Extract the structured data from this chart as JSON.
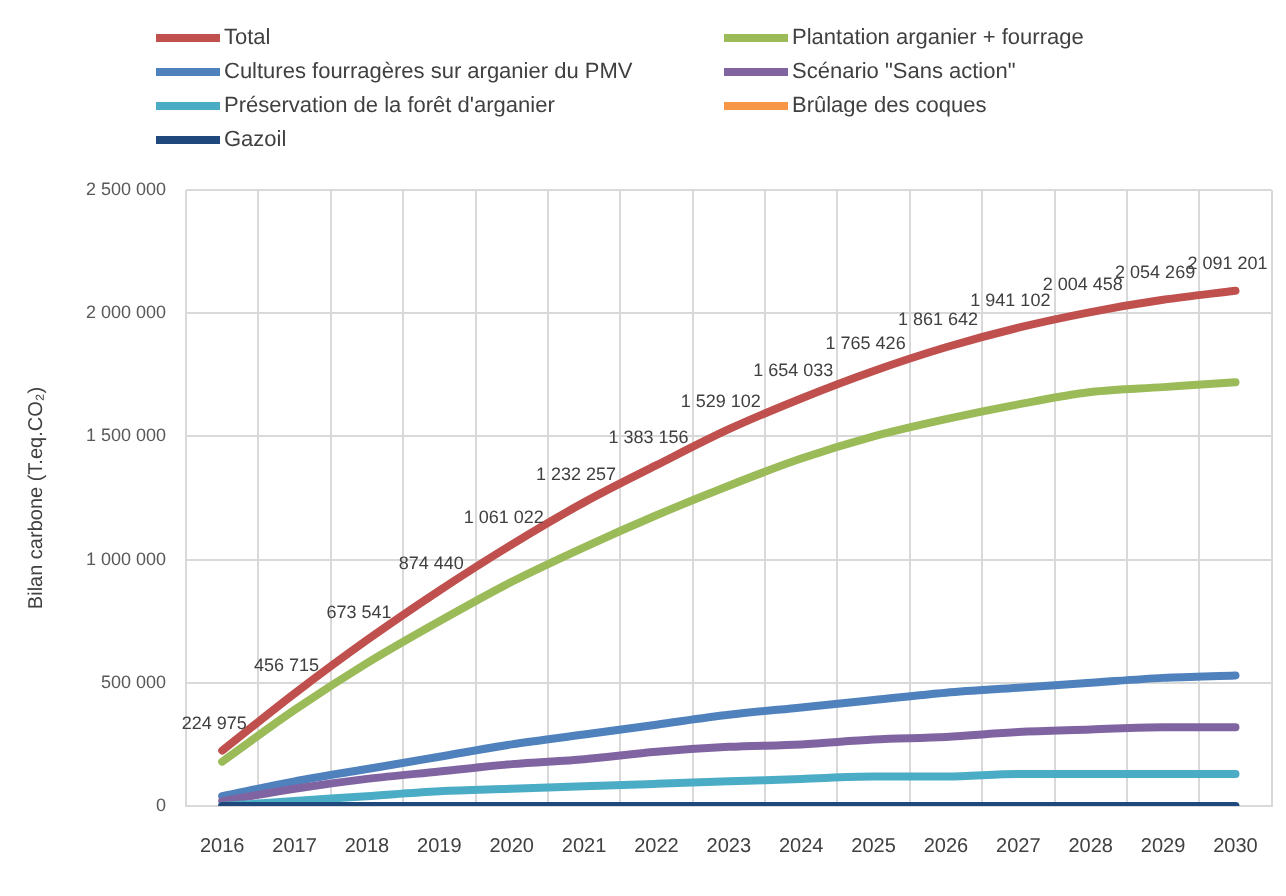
{
  "chart_data": {
    "type": "line",
    "categories": [
      "2016",
      "2017",
      "2018",
      "2019",
      "2020",
      "2021",
      "2022",
      "2023",
      "2024",
      "2025",
      "2026",
      "2027",
      "2028",
      "2029",
      "2030"
    ],
    "ylabel": "Bilan carbone (T.eq.CO₂)",
    "ylim": [
      0,
      2500000
    ],
    "yticks": [
      0,
      {
        "value": 500000,
        "label": "500 000"
      },
      {
        "value": 1000000,
        "label": "1 000 000"
      },
      {
        "value": 1500000,
        "label": "1 500 000"
      },
      {
        "value": 2000000,
        "label": "2 000 000"
      },
      {
        "value": 2500000,
        "label": "2 500 000"
      }
    ],
    "grid": true,
    "legend": "top",
    "marker": "none",
    "line_style": "solid",
    "series": [
      {
        "name": "Total",
        "color": "#c0504d",
        "values": [
          224975,
          456715,
          673541,
          874440,
          1061022,
          1232257,
          1383156,
          1529102,
          1654033,
          1765426,
          1861642,
          1941102,
          2004458,
          2054269,
          2091201
        ],
        "value_labels": [
          "224 975",
          "456 715",
          "673 541",
          "874 440",
          "1 061 022",
          "1 232 257",
          "1 383 156",
          "1 529 102",
          "1 654 033",
          "1 765 426",
          "1 861 642",
          "1 941 102",
          "2 004 458",
          "2 054 269",
          "2 091 201"
        ]
      },
      {
        "name": "Plantation arganier + fourrage",
        "color": "#9bbb59",
        "values": [
          180000,
          390000,
          580000,
          750000,
          910000,
          1050000,
          1180000,
          1300000,
          1410000,
          1500000,
          1570000,
          1630000,
          1680000,
          1700000,
          1720000
        ]
      },
      {
        "name": "Cultures fourragères sur arganier du PMV",
        "color": "#4f81bd",
        "values": [
          40000,
          100000,
          150000,
          200000,
          250000,
          290000,
          330000,
          370000,
          400000,
          430000,
          460000,
          480000,
          500000,
          520000,
          530000
        ]
      },
      {
        "name": "Scénario \"Sans action\"",
        "color": "#8064a2",
        "values": [
          20000,
          70000,
          110000,
          140000,
          170000,
          190000,
          220000,
          240000,
          250000,
          270000,
          280000,
          300000,
          310000,
          320000,
          320000
        ]
      },
      {
        "name": "Préservation de la forêt d'arganier",
        "color": "#4bacc6",
        "values": [
          0,
          20000,
          40000,
          60000,
          70000,
          80000,
          90000,
          100000,
          110000,
          120000,
          120000,
          130000,
          130000,
          130000,
          130000
        ]
      },
      {
        "name": "Brûlage des coques",
        "color": "#f79646",
        "values": [
          null,
          null,
          null,
          null,
          null,
          null,
          null,
          null,
          null,
          null,
          null,
          null,
          null,
          null,
          null
        ]
      },
      {
        "name": "Gazoil",
        "color": "#1f497d",
        "values": [
          0,
          0,
          0,
          0,
          0,
          0,
          0,
          0,
          0,
          0,
          0,
          0,
          0,
          0,
          0
        ]
      }
    ]
  }
}
